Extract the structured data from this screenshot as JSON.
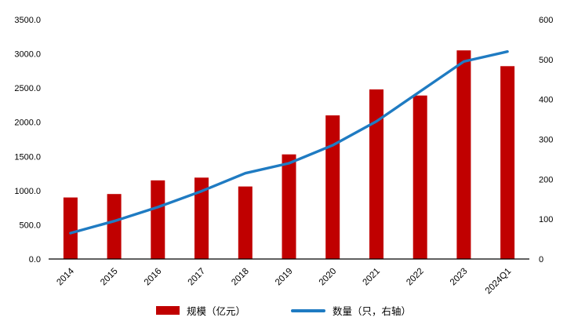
{
  "chart_data": {
    "type": "bar",
    "combo": "bar+line",
    "categories": [
      "2014",
      "2015",
      "2016",
      "2017",
      "2018",
      "2019",
      "2020",
      "2021",
      "2022",
      "2023",
      "2024Q1"
    ],
    "series": [
      {
        "name": "规模（亿元）",
        "type": "bar",
        "axis": "left",
        "color": "#C00000",
        "values": [
          900,
          950,
          1150,
          1190,
          1060,
          1530,
          2100,
          2480,
          2390,
          3050,
          2820
        ]
      },
      {
        "name": "数量（只，右轴）",
        "type": "line",
        "axis": "right",
        "color": "#1F7BC2",
        "values": [
          65,
          95,
          130,
          170,
          215,
          240,
          285,
          345,
          420,
          495,
          520
        ]
      }
    ],
    "left_axis": {
      "min": 0,
      "max": 3500,
      "step": 500,
      "decimals": 1
    },
    "right_axis": {
      "min": 0,
      "max": 600,
      "step": 100,
      "decimals": 0
    },
    "grid": false,
    "legend_position": "bottom",
    "title": ""
  }
}
